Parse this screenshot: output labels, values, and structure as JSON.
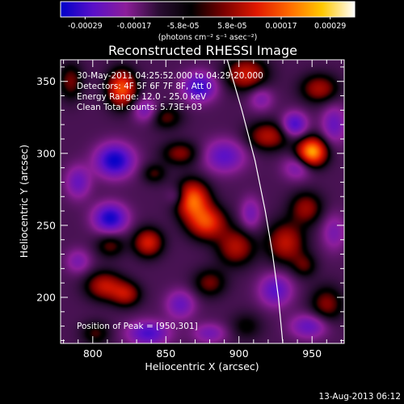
{
  "colorbar": {
    "ticks": [
      "-0.00029",
      "-0.00017",
      "-5.8e-05",
      "5.8e-05",
      "0.00017",
      "0.00029"
    ],
    "unit_label": "(photons cm⁻² s⁻¹ asec⁻²)",
    "colors": [
      "#0000c8",
      "#5a10c8",
      "#8c1e9a",
      "#2a0d33",
      "#000000",
      "#7a0000",
      "#e01800",
      "#ff6a00",
      "#ffc800",
      "#ffffff"
    ]
  },
  "chart_data": {
    "type": "heatmap",
    "title": "Reconstructed RHESSI Image",
    "xlabel": "Heliocentric X (arcsec)",
    "ylabel": "Heliocentric Y (arcsec)",
    "xlim": [
      778,
      972
    ],
    "ylim": [
      168,
      365
    ],
    "x_ticks": [
      800,
      850,
      900,
      950
    ],
    "y_ticks": [
      200,
      250,
      300,
      350
    ],
    "x_tick_labels": [
      "800",
      "850",
      "900",
      "950"
    ],
    "y_tick_labels": [
      "200",
      "250",
      "300",
      "350"
    ],
    "colorbar_range": [
      -0.00029,
      0.00029
    ],
    "annotations": {
      "time_range": "30-May-2011 04:25:52.000 to 04:29:20.000",
      "detectors": "Detectors: 4F 5F 6F 7F 8F, Att 0",
      "energy_range": "Energy Range: 12.0 - 25.0 keV",
      "clean_info": "Clean     Total counts: 5.73E+03",
      "peak_position": "Position of Peak = [950,301]"
    },
    "peak": {
      "x": 950,
      "y": 301
    },
    "limb_curve": [
      [
        892,
        365
      ],
      [
        902,
        330
      ],
      [
        911,
        295
      ],
      [
        918,
        260
      ],
      [
        923,
        230
      ],
      [
        927,
        200
      ],
      [
        930,
        168
      ]
    ],
    "blobs": [
      {
        "x": 950,
        "y": 301,
        "sx": 7,
        "sy": 7,
        "v": 0.00029
      },
      {
        "x": 868,
        "y": 268,
        "sx": 8,
        "sy": 9,
        "v": 0.00024
      },
      {
        "x": 878,
        "y": 252,
        "sx": 9,
        "sy": 8,
        "v": 0.0002
      },
      {
        "x": 820,
        "y": 345,
        "sx": 7,
        "sy": 9,
        "v": 0.00022
      },
      {
        "x": 838,
        "y": 238,
        "sx": 7,
        "sy": 7,
        "v": 0.00017
      },
      {
        "x": 808,
        "y": 208,
        "sx": 9,
        "sy": 7,
        "v": 0.00015
      },
      {
        "x": 823,
        "y": 202,
        "sx": 7,
        "sy": 6,
        "v": 0.00013
      },
      {
        "x": 905,
        "y": 355,
        "sx": 10,
        "sy": 8,
        "v": 0.00016
      },
      {
        "x": 920,
        "y": 312,
        "sx": 10,
        "sy": 7,
        "v": 0.00014
      },
      {
        "x": 955,
        "y": 345,
        "sx": 9,
        "sy": 7,
        "v": 0.00013
      },
      {
        "x": 932,
        "y": 238,
        "sx": 9,
        "sy": 10,
        "v": 0.00015
      },
      {
        "x": 946,
        "y": 262,
        "sx": 8,
        "sy": 8,
        "v": 0.00012
      },
      {
        "x": 898,
        "y": 235,
        "sx": 9,
        "sy": 9,
        "v": 0.00014
      },
      {
        "x": 860,
        "y": 300,
        "sx": 9,
        "sy": 6,
        "v": 0.00011
      },
      {
        "x": 785,
        "y": 350,
        "sx": 6,
        "sy": 9,
        "v": 0.0001
      },
      {
        "x": 960,
        "y": 195,
        "sx": 8,
        "sy": 9,
        "v": 0.00011
      },
      {
        "x": 880,
        "y": 210,
        "sx": 8,
        "sy": 7,
        "v": 0.0001
      },
      {
        "x": 850,
        "y": 325,
        "sx": 8,
        "sy": 6,
        "v": 9e-05
      },
      {
        "x": 842,
        "y": 286,
        "sx": 6,
        "sy": 5,
        "v": 8e-05
      },
      {
        "x": 812,
        "y": 236,
        "sx": 7,
        "sy": 6,
        "v": 9e-05
      },
      {
        "x": 945,
        "y": 222,
        "sx": 6,
        "sy": 6,
        "v": 8e-05
      },
      {
        "x": 905,
        "y": 180,
        "sx": 8,
        "sy": 7,
        "v": 6e-05
      },
      {
        "x": 802,
        "y": 175,
        "sx": 7,
        "sy": 6,
        "v": 8e-05
      },
      {
        "x": 815,
        "y": 295,
        "sx": 9,
        "sy": 8,
        "v": -0.00022
      },
      {
        "x": 873,
        "y": 346,
        "sx": 8,
        "sy": 7,
        "v": -0.00018
      },
      {
        "x": 812,
        "y": 255,
        "sx": 8,
        "sy": 7,
        "v": -0.00021
      },
      {
        "x": 938,
        "y": 320,
        "sx": 6,
        "sy": 6,
        "v": -0.00017
      },
      {
        "x": 965,
        "y": 320,
        "sx": 6,
        "sy": 9,
        "v": -0.00012
      },
      {
        "x": 838,
        "y": 175,
        "sx": 10,
        "sy": 6,
        "v": -0.00016
      },
      {
        "x": 890,
        "y": 298,
        "sx": 10,
        "sy": 8,
        "v": -0.00014
      },
      {
        "x": 858,
        "y": 270,
        "sx": 5,
        "sy": 5,
        "v": -8e-05
      },
      {
        "x": 908,
        "y": 258,
        "sx": 5,
        "sy": 8,
        "v": -0.0001
      },
      {
        "x": 940,
        "y": 290,
        "sx": 7,
        "sy": 6,
        "v": -0.0001
      },
      {
        "x": 925,
        "y": 205,
        "sx": 8,
        "sy": 8,
        "v": -0.00014
      },
      {
        "x": 948,
        "y": 180,
        "sx": 9,
        "sy": 6,
        "v": -0.00013
      },
      {
        "x": 860,
        "y": 195,
        "sx": 7,
        "sy": 7,
        "v": -0.00012
      },
      {
        "x": 880,
        "y": 175,
        "sx": 8,
        "sy": 5,
        "v": -0.0001
      },
      {
        "x": 790,
        "y": 280,
        "sx": 6,
        "sy": 8,
        "v": -0.00012
      },
      {
        "x": 836,
        "y": 330,
        "sx": 6,
        "sy": 6,
        "v": -0.00011
      },
      {
        "x": 915,
        "y": 338,
        "sx": 6,
        "sy": 6,
        "v": -9e-05
      },
      {
        "x": 965,
        "y": 245,
        "sx": 6,
        "sy": 9,
        "v": -9e-05
      },
      {
        "x": 790,
        "y": 225,
        "sx": 6,
        "sy": 6,
        "v": -9e-05
      }
    ]
  },
  "footer": {
    "timestamp": "13-Aug-2013 06:12"
  }
}
